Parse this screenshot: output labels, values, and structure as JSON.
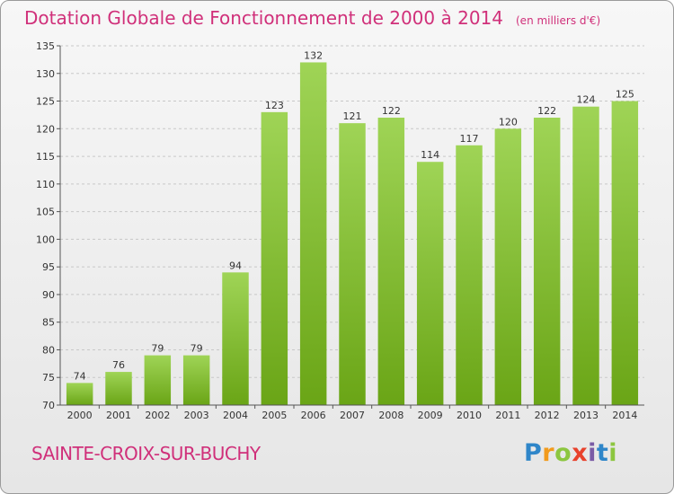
{
  "title": "Dotation Globale de Fonctionnement de 2000 à 2014",
  "subtitle": "(en milliers d'€)",
  "commune": "SAINTE-CROIX-SUR-BUCHY",
  "logo": {
    "p": "P",
    "r": "r",
    "o": "o",
    "x": "x",
    "i": "i",
    "t": "t",
    "i2": "i"
  },
  "colors": {
    "title": "#d0307a",
    "bar_light": "#9fd456",
    "bar_dark": "#6aa516",
    "grid": "#c8c8c8"
  },
  "chart_data": {
    "type": "bar",
    "title": "Dotation Globale de Fonctionnement de 2000 à 2014",
    "subtitle": "(en milliers d'€)",
    "xlabel": "",
    "ylabel": "",
    "categories": [
      "2000",
      "2001",
      "2002",
      "2003",
      "2004",
      "2005",
      "2006",
      "2007",
      "2008",
      "2009",
      "2010",
      "2011",
      "2012",
      "2013",
      "2014"
    ],
    "values": [
      74,
      76,
      79,
      79,
      94,
      123,
      132,
      121,
      122,
      114,
      117,
      120,
      122,
      124,
      125
    ],
    "ylim": [
      70,
      135
    ],
    "yticks": [
      70,
      75,
      80,
      85,
      90,
      95,
      100,
      105,
      110,
      115,
      120,
      125,
      130,
      135
    ],
    "grid": true,
    "legend": "none"
  }
}
